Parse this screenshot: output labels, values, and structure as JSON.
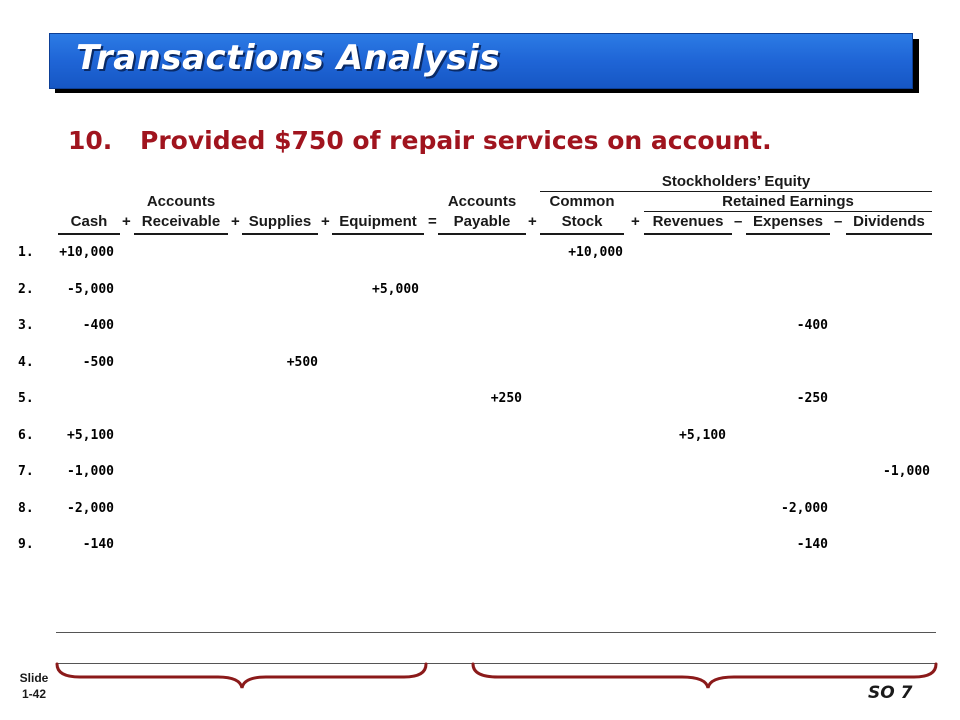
{
  "banner": {
    "title": "Transactions Analysis"
  },
  "transaction": {
    "number": "10.",
    "text": "Provided $750 of repair services on account."
  },
  "header": {
    "group_equity": "Stockholders’ Equity",
    "group_retained": "Retained Earnings",
    "columns": [
      {
        "top": "",
        "bottom": "Cash"
      },
      {
        "top": "Accounts",
        "bottom": "Receivable"
      },
      {
        "top": "",
        "bottom": "Supplies"
      },
      {
        "top": "",
        "bottom": "Equipment"
      },
      {
        "top": "Accounts",
        "bottom": "Payable"
      },
      {
        "top": "Common",
        "bottom": "Stock"
      },
      {
        "top": "",
        "bottom": "Revenues"
      },
      {
        "top": "",
        "bottom": "Expenses"
      },
      {
        "top": "",
        "bottom": "Dividends"
      }
    ],
    "operators": [
      "+",
      "+",
      "+",
      "=",
      "+",
      "+",
      "–",
      "–"
    ]
  },
  "rows": [
    {
      "num": "1.",
      "cash": "+10,000",
      "ar": "",
      "supplies": "",
      "equipment": "",
      "ap": "",
      "stock": "+10,000",
      "revenues": "",
      "expenses": "",
      "dividends": ""
    },
    {
      "num": "2.",
      "cash": "-5,000",
      "ar": "",
      "supplies": "",
      "equipment": "+5,000",
      "ap": "",
      "stock": "",
      "revenues": "",
      "expenses": "",
      "dividends": ""
    },
    {
      "num": "3.",
      "cash": "-400",
      "ar": "",
      "supplies": "",
      "equipment": "",
      "ap": "",
      "stock": "",
      "revenues": "",
      "expenses": "-400",
      "dividends": ""
    },
    {
      "num": "4.",
      "cash": "-500",
      "ar": "",
      "supplies": "+500",
      "equipment": "",
      "ap": "",
      "stock": "",
      "revenues": "",
      "expenses": "",
      "dividends": ""
    },
    {
      "num": "5.",
      "cash": "",
      "ar": "",
      "supplies": "",
      "equipment": "",
      "ap": "+250",
      "stock": "",
      "revenues": "",
      "expenses": "-250",
      "dividends": ""
    },
    {
      "num": "6.",
      "cash": "+5,100",
      "ar": "",
      "supplies": "",
      "equipment": "",
      "ap": "",
      "stock": "",
      "revenues": "+5,100",
      "expenses": "",
      "dividends": ""
    },
    {
      "num": "7.",
      "cash": "-1,000",
      "ar": "",
      "supplies": "",
      "equipment": "",
      "ap": "",
      "stock": "",
      "revenues": "",
      "expenses": "",
      "dividends": "-1,000"
    },
    {
      "num": "8.",
      "cash": "-2,000",
      "ar": "",
      "supplies": "",
      "equipment": "",
      "ap": "",
      "stock": "",
      "revenues": "",
      "expenses": "-2,000",
      "dividends": ""
    },
    {
      "num": "9.",
      "cash": "-140",
      "ar": "",
      "supplies": "",
      "equipment": "",
      "ap": "",
      "stock": "",
      "revenues": "",
      "expenses": "-140",
      "dividends": ""
    }
  ],
  "footer": {
    "slide_line1": "Slide",
    "slide_line2": "1-42",
    "so": "SO 7"
  },
  "colors": {
    "banner": "#1f65d6",
    "heading": "#a0141e",
    "brace": "#8b1a1a"
  }
}
